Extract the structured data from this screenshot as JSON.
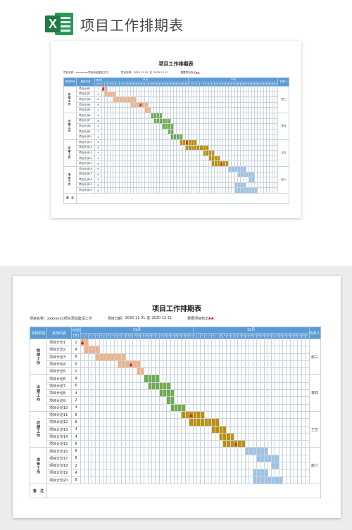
{
  "header": {
    "app_icon": "excel-icon",
    "app_icon_letter": "X",
    "title": "项目工作排期表"
  },
  "sheet": {
    "title": "项目工作排期表",
    "project_label": "项目名称：",
    "project_name": "xxxxxxxx项目添加建设工作",
    "date_label": "项目日期：",
    "date_start": "2020 11 01",
    "date_sep": "至",
    "date_end": "2020 12 31",
    "legend_label": "重要项目标记",
    "legend_marker": "▲▲",
    "cols": {
      "phase": "项目阶段",
      "content": "具体内容",
      "days": "时间(天)",
      "owner": "负责人"
    },
    "months": [
      {
        "name": "11月",
        "days": [
          "1",
          "2",
          "3",
          "4",
          "5",
          "6",
          "7",
          "8",
          "9",
          "10",
          "11",
          "12",
          "13",
          "14",
          "15",
          "16",
          "17",
          "18",
          "19",
          "20",
          "21",
          "22",
          "23",
          "24",
          "25",
          "26",
          "27",
          "28",
          "29",
          "30"
        ]
      },
      {
        "name": "12月",
        "days": [
          "1",
          "2",
          "3",
          "4",
          "5",
          "6",
          "7",
          "8",
          "9",
          "10",
          "11",
          "12",
          "13",
          "14",
          "15",
          "16",
          "17",
          "18",
          "19",
          "20",
          "21",
          "22",
          "23",
          "24",
          "25",
          "26",
          "27",
          "28",
          "29",
          "30",
          "31"
        ]
      }
    ],
    "phases": [
      {
        "name": "前期工作",
        "owner": "张三",
        "color": "#f4b183",
        "tasks": [
          {
            "name": "项目计划1",
            "days": "2",
            "start": 0,
            "len": 2,
            "mark": 0
          },
          {
            "name": "项目计划2",
            "days": "4",
            "start": 1,
            "len": 4
          },
          {
            "name": "项目计划3",
            "days": "8",
            "start": 4,
            "len": 8
          },
          {
            "name": "项目计划4",
            "days": "6",
            "start": 10,
            "len": 6,
            "mark": 13
          },
          {
            "name": "项目计划5",
            "days": "2",
            "start": 15,
            "len": 2
          }
        ]
      },
      {
        "name": "中期工作",
        "owner": "李四",
        "color": "#70ad47",
        "tasks": [
          {
            "name": "项目计划6",
            "days": "4",
            "start": 17,
            "len": 4
          },
          {
            "name": "项目计划7",
            "days": "6",
            "start": 18,
            "len": 6
          },
          {
            "name": "项目计划8",
            "days": "4",
            "start": 21,
            "len": 4
          },
          {
            "name": "项目计划9",
            "days": "2",
            "start": 23,
            "len": 2
          },
          {
            "name": "项目计划10",
            "days": "4",
            "start": 24,
            "len": 4
          }
        ]
      },
      {
        "name": "后期工作",
        "owner": "王五",
        "color": "#bf9000",
        "tasks": [
          {
            "name": "项目计划11",
            "days": "6",
            "start": 27,
            "len": 6,
            "mark": 29
          },
          {
            "name": "项目计划12",
            "days": "8",
            "start": 29,
            "len": 8
          },
          {
            "name": "项目计划13",
            "days": "4",
            "start": 35,
            "len": 4
          },
          {
            "name": "项目计划14",
            "days": "4",
            "start": 37,
            "len": 4
          },
          {
            "name": "项目计划15",
            "days": "6",
            "start": 38,
            "len": 6,
            "mark": 41
          }
        ]
      },
      {
        "name": "准备工作",
        "owner": "赵六",
        "color": "#9dc3e6",
        "tasks": [
          {
            "name": "项目计划16",
            "days": "6",
            "start": 44,
            "len": 6
          },
          {
            "name": "项目计划17",
            "days": "6",
            "start": 47,
            "len": 6
          },
          {
            "name": "项目计划18",
            "days": "2",
            "start": 51,
            "len": 2
          },
          {
            "name": "项目计划19",
            "days": "4",
            "start": 46,
            "len": 4
          },
          {
            "name": "项目计划20",
            "days": "8",
            "start": 46,
            "len": 8
          }
        ]
      }
    ],
    "note": "备　注"
  }
}
